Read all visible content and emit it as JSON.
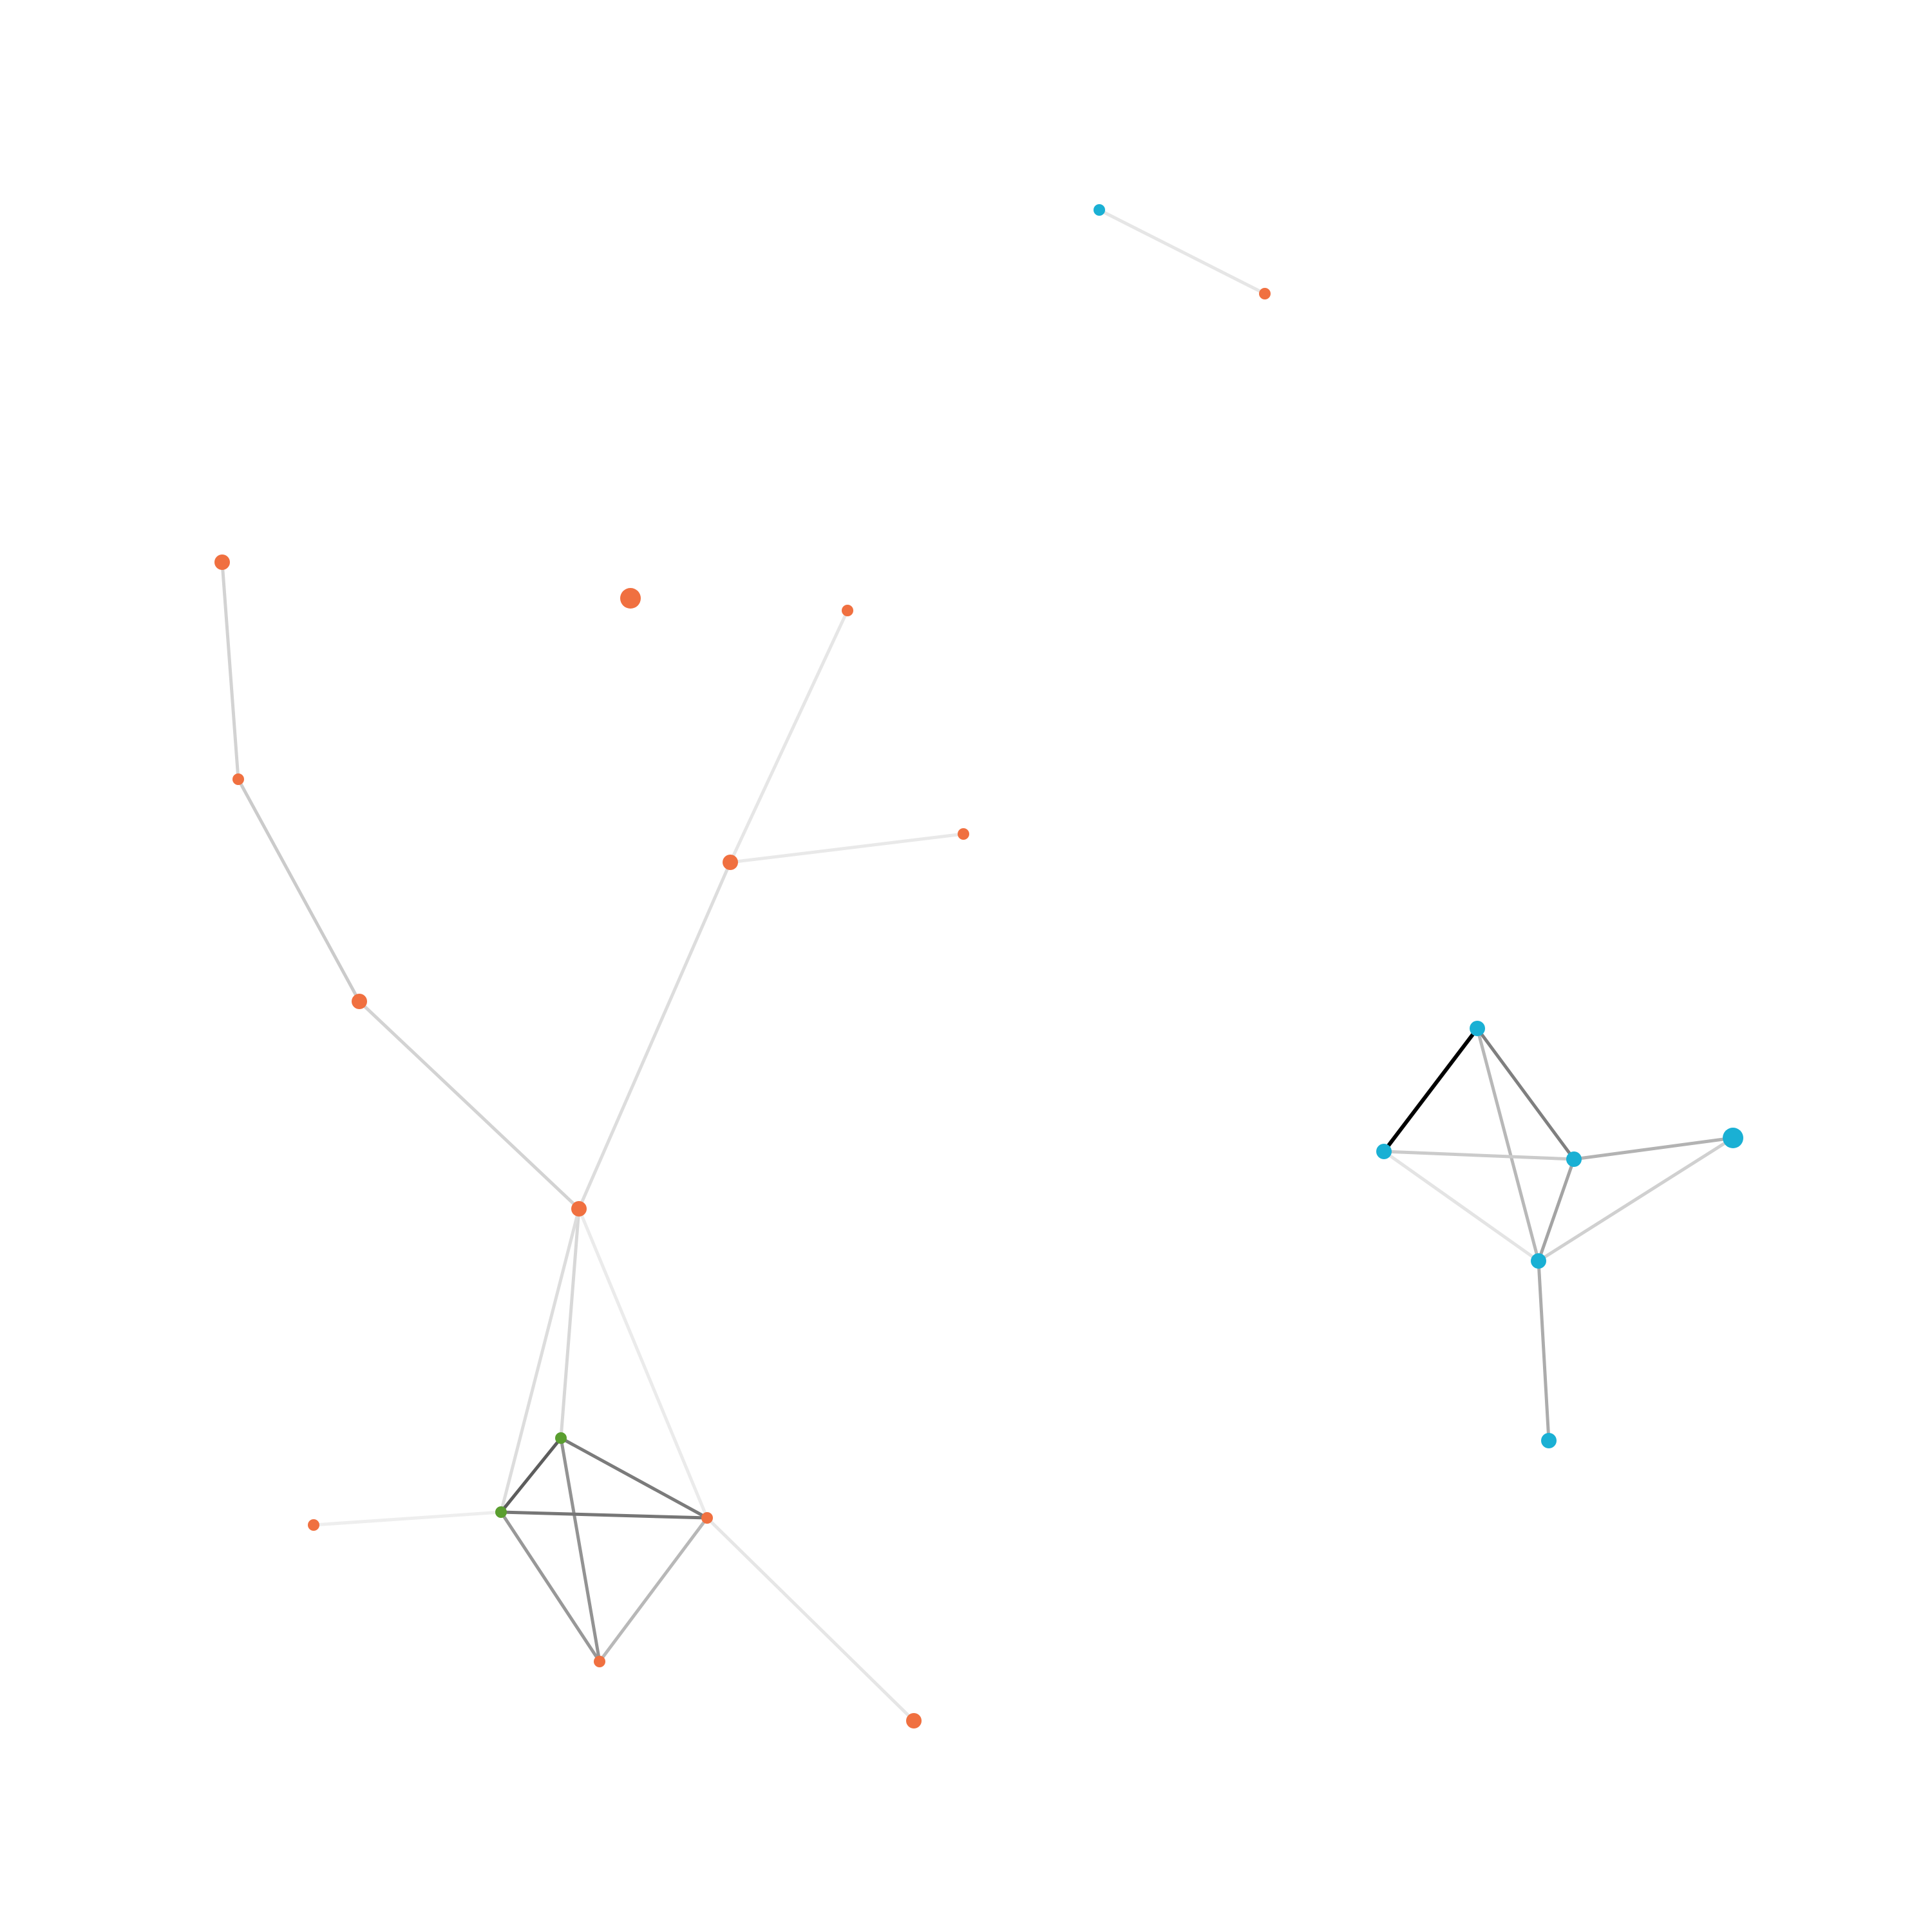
{
  "colors": {
    "background": "#ffffff",
    "group_orange": "#f07040",
    "group_cyan": "#1ab0d4",
    "group_green": "#5a9e2f",
    "edge": "#000000"
  },
  "nodes": [
    {
      "id": "n1",
      "group": "orange",
      "size": "medium"
    },
    {
      "id": "n2",
      "group": "orange",
      "size": "small"
    },
    {
      "id": "n3",
      "group": "orange",
      "size": "medium"
    },
    {
      "id": "n4",
      "group": "orange",
      "size": "medium"
    },
    {
      "id": "n5",
      "group": "orange",
      "size": "large"
    },
    {
      "id": "n6",
      "group": "orange",
      "size": "small"
    },
    {
      "id": "n7",
      "group": "orange",
      "size": "medium"
    },
    {
      "id": "n8",
      "group": "orange",
      "size": "small"
    },
    {
      "id": "n9",
      "group": "green",
      "size": "small"
    },
    {
      "id": "n10",
      "group": "green",
      "size": "small"
    },
    {
      "id": "n11",
      "group": "orange",
      "size": "small"
    },
    {
      "id": "n12",
      "group": "orange",
      "size": "small"
    },
    {
      "id": "n13",
      "group": "orange",
      "size": "small"
    },
    {
      "id": "n14",
      "group": "orange",
      "size": "medium"
    },
    {
      "id": "n15",
      "group": "cyan",
      "size": "small"
    },
    {
      "id": "n16",
      "group": "orange",
      "size": "small"
    },
    {
      "id": "n17",
      "group": "cyan",
      "size": "medium"
    },
    {
      "id": "n18",
      "group": "cyan",
      "size": "medium"
    },
    {
      "id": "n19",
      "group": "cyan",
      "size": "medium"
    },
    {
      "id": "n20",
      "group": "cyan",
      "size": "large"
    },
    {
      "id": "n21",
      "group": "cyan",
      "size": "medium"
    },
    {
      "id": "n22",
      "group": "cyan",
      "size": "medium"
    }
  ],
  "edges": [
    {
      "source": "n1",
      "target": "n2",
      "weight": 0.14
    },
    {
      "source": "n2",
      "target": "n3",
      "weight": 0.17
    },
    {
      "source": "n3",
      "target": "n4",
      "weight": 0.14
    },
    {
      "source": "n4",
      "target": "n7",
      "weight": 0.1
    },
    {
      "source": "n7",
      "target": "n6",
      "weight": 0.06
    },
    {
      "source": "n7",
      "target": "n8",
      "weight": 0.05
    },
    {
      "source": "n4",
      "target": "n9",
      "weight": 0.12
    },
    {
      "source": "n4",
      "target": "n10",
      "weight": 0.1
    },
    {
      "source": "n4",
      "target": "n13",
      "weight": 0.04
    },
    {
      "source": "n9",
      "target": "n10",
      "weight": 0.62
    },
    {
      "source": "n9",
      "target": "n13",
      "weight": 0.5
    },
    {
      "source": "n9",
      "target": "n12",
      "weight": 0.4
    },
    {
      "source": "n10",
      "target": "n13",
      "weight": 0.52
    },
    {
      "source": "n10",
      "target": "n12",
      "weight": 0.38
    },
    {
      "source": "n13",
      "target": "n12",
      "weight": 0.25
    },
    {
      "source": "n10",
      "target": "n11",
      "weight": 0.03
    },
    {
      "source": "n13",
      "target": "n14",
      "weight": 0.06
    },
    {
      "source": "n15",
      "target": "n16",
      "weight": 0.06
    },
    {
      "source": "n17",
      "target": "n18",
      "weight": 1.0
    },
    {
      "source": "n17",
      "target": "n19",
      "weight": 0.48
    },
    {
      "source": "n17",
      "target": "n21",
      "weight": 0.25
    },
    {
      "source": "n18",
      "target": "n19",
      "weight": 0.17
    },
    {
      "source": "n18",
      "target": "n21",
      "weight": 0.07
    },
    {
      "source": "n19",
      "target": "n20",
      "weight": 0.27
    },
    {
      "source": "n19",
      "target": "n21",
      "weight": 0.33
    },
    {
      "source": "n20",
      "target": "n21",
      "weight": 0.15
    },
    {
      "source": "n21",
      "target": "n22",
      "weight": 0.3
    }
  ]
}
